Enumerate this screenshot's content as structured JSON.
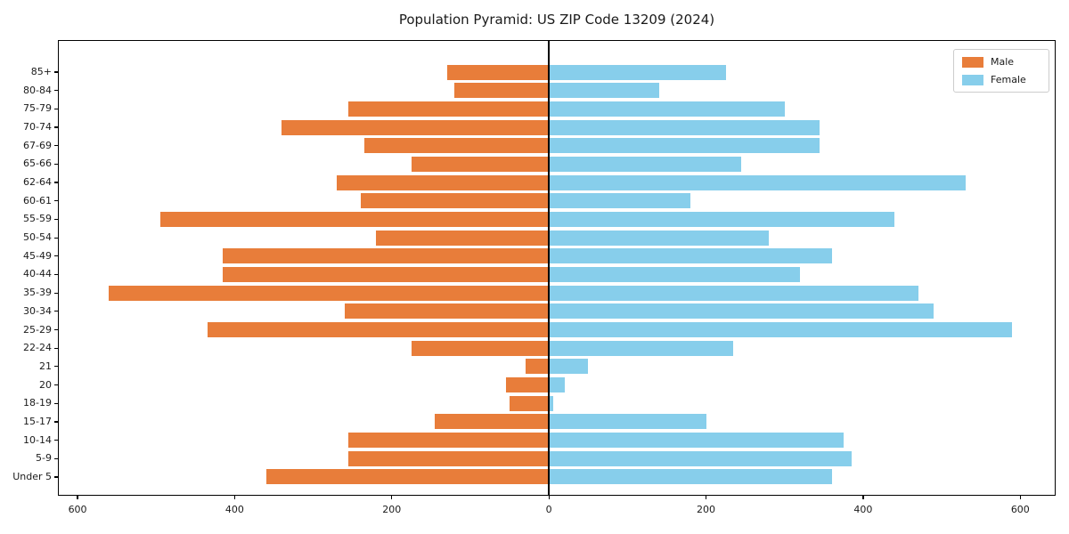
{
  "figure": {
    "title": "Population Pyramid: US ZIP Code 13209 (2024)"
  },
  "chart_data": {
    "type": "bar",
    "subtype": "population-pyramid",
    "orientation": "horizontal",
    "title": "Population Pyramid: US ZIP Code 13209 (2024)",
    "categories_top_to_bottom": [
      "85+",
      "80-84",
      "75-79",
      "70-74",
      "67-69",
      "65-66",
      "62-64",
      "60-61",
      "55-59",
      "50-54",
      "45-49",
      "40-44",
      "35-39",
      "30-34",
      "25-29",
      "22-24",
      "21",
      "20",
      "18-19",
      "15-17",
      "10-14",
      "5-9",
      "Under 5"
    ],
    "series": [
      {
        "name": "Male",
        "side": "left",
        "color": "#e87d3a",
        "values": [
          130,
          120,
          255,
          340,
          235,
          175,
          270,
          240,
          495,
          220,
          415,
          415,
          560,
          260,
          435,
          175,
          30,
          55,
          50,
          145,
          255,
          255,
          360
        ]
      },
      {
        "name": "Female",
        "side": "right",
        "color": "#87ceeb",
        "values": [
          225,
          140,
          300,
          345,
          345,
          245,
          530,
          180,
          440,
          280,
          360,
          320,
          470,
          490,
          590,
          235,
          50,
          20,
          5,
          200,
          375,
          385,
          360
        ]
      }
    ],
    "x_axis": {
      "ticks": [
        -600,
        -400,
        -200,
        0,
        200,
        400,
        600
      ],
      "tick_labels": [
        "600",
        "400",
        "200",
        "0",
        "200",
        "400",
        "600"
      ],
      "xlim": [
        -625,
        645
      ]
    },
    "y_axis": {
      "label": ""
    },
    "legend": {
      "position": "upper right",
      "entries": [
        {
          "label": "Male",
          "color": "#e87d3a"
        },
        {
          "label": "Female",
          "color": "#87ceeb"
        }
      ]
    },
    "grid": false,
    "zero_line": true,
    "zero_line_color": "#000000"
  },
  "colors": {
    "male": "#e87d3a",
    "female": "#87ceeb",
    "axis": "#000000",
    "background": "#ffffff",
    "legend_border": "#cccccc"
  }
}
